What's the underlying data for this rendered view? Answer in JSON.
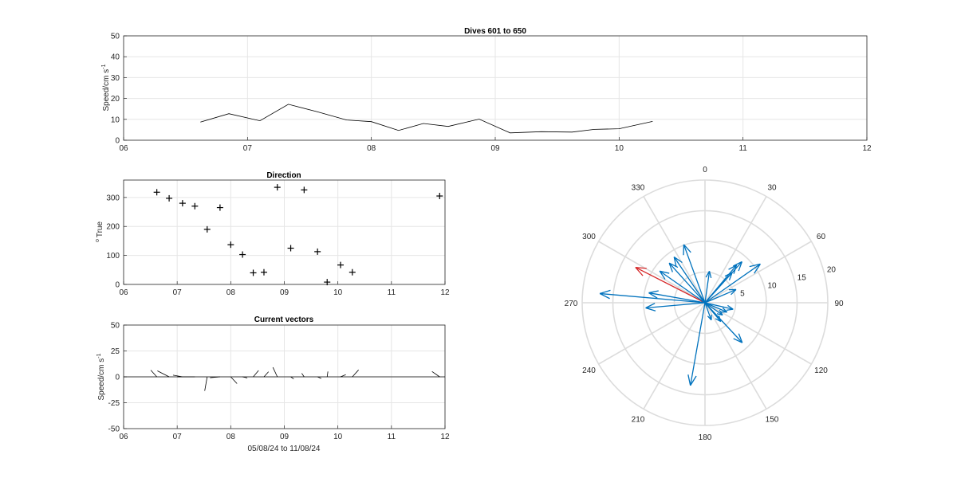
{
  "figure": {
    "date_range_label": "05/08/24 to 11/08/24"
  },
  "chart_data": [
    {
      "id": "speed",
      "type": "line",
      "title": "Dives 601 to 650",
      "ylabel": "Speed/cm s",
      "ylabel_sup": "-1",
      "xlim": [
        6,
        12
      ],
      "ylim": [
        0,
        50
      ],
      "xticks": [
        "06",
        "07",
        "08",
        "09",
        "10",
        "11",
        "12"
      ],
      "yticks": [
        0,
        10,
        20,
        30,
        40,
        50
      ],
      "grid": true,
      "x": [
        6.62,
        6.85,
        7.1,
        7.33,
        7.56,
        7.8,
        8.0,
        8.22,
        8.42,
        8.62,
        8.87,
        9.12,
        9.37,
        9.62,
        9.8,
        10.0,
        10.27
      ],
      "y": [
        8.7,
        12.7,
        9.3,
        17.2,
        13.7,
        9.7,
        8.9,
        4.7,
        8.0,
        6.6,
        10.1,
        3.5,
        4.1,
        3.9,
        5.2,
        5.5,
        9.0
      ]
    },
    {
      "id": "direction",
      "type": "scatter",
      "title": "Direction",
      "ylabel": "True",
      "ylabel_prefix": "o",
      "xlim": [
        6,
        12
      ],
      "ylim": [
        0,
        360
      ],
      "xticks": [
        "06",
        "07",
        "08",
        "09",
        "10",
        "11",
        "12"
      ],
      "yticks": [
        0,
        100,
        200,
        300
      ],
      "grid": true,
      "x": [
        6.62,
        6.85,
        7.1,
        7.33,
        7.56,
        7.8,
        8.0,
        8.22,
        8.42,
        8.62,
        8.87,
        9.12,
        9.37,
        9.62,
        9.8,
        10.05,
        10.27,
        11.9
      ],
      "y": [
        318,
        297,
        280,
        270,
        190,
        265,
        137,
        103,
        40,
        42,
        335,
        125,
        326,
        113,
        8,
        67,
        42,
        305
      ]
    },
    {
      "id": "vectors",
      "type": "line",
      "title": "Current vectors",
      "ylabel": "Speed/cm s",
      "ylabel_sup": "-1",
      "xlim": [
        6,
        12
      ],
      "ylim": [
        -50,
        50
      ],
      "xticks": [
        "06",
        "07",
        "08",
        "09",
        "10",
        "11",
        "12"
      ],
      "yticks": [
        -50,
        -25,
        0,
        25,
        50
      ],
      "grid": true,
      "vectors": [
        {
          "t": 6.62,
          "speed": 8.7,
          "dir": 318
        },
        {
          "t": 6.85,
          "speed": 12.7,
          "dir": 297
        },
        {
          "t": 7.1,
          "speed": 9.3,
          "dir": 280
        },
        {
          "t": 7.33,
          "speed": 17.2,
          "dir": 270
        },
        {
          "t": 7.56,
          "speed": 13.7,
          "dir": 190
        },
        {
          "t": 7.8,
          "speed": 9.7,
          "dir": 265
        },
        {
          "t": 8.0,
          "speed": 8.9,
          "dir": 137
        },
        {
          "t": 8.22,
          "speed": 4.7,
          "dir": 103
        },
        {
          "t": 8.42,
          "speed": 8.0,
          "dir": 40
        },
        {
          "t": 8.62,
          "speed": 6.6,
          "dir": 42
        },
        {
          "t": 8.87,
          "speed": 10.1,
          "dir": 335
        },
        {
          "t": 9.12,
          "speed": 3.5,
          "dir": 125
        },
        {
          "t": 9.37,
          "speed": 4.1,
          "dir": 326
        },
        {
          "t": 9.62,
          "speed": 3.9,
          "dir": 113
        },
        {
          "t": 9.8,
          "speed": 5.2,
          "dir": 8
        },
        {
          "t": 10.05,
          "speed": 5.5,
          "dir": 67
        },
        {
          "t": 10.27,
          "speed": 9.0,
          "dir": 42
        },
        {
          "t": 11.9,
          "speed": 9.0,
          "dir": 305
        }
      ]
    },
    {
      "id": "polar",
      "type": "scatter",
      "subtype": "compass",
      "theta_labels": [
        "0",
        "30",
        "60",
        "90",
        "120",
        "150",
        "180",
        "210",
        "240",
        "270",
        "300",
        "330"
      ],
      "r_labels": [
        "5",
        "10",
        "15",
        "20"
      ],
      "rlim": [
        0,
        20
      ],
      "series_color": "#0072BD",
      "highlight_color": "#D62728",
      "vectors": [
        {
          "speed": 8.7,
          "dir": 318
        },
        {
          "speed": 12.7,
          "dir": 297,
          "highlight": true
        },
        {
          "speed": 9.3,
          "dir": 280
        },
        {
          "speed": 17.2,
          "dir": 275
        },
        {
          "speed": 13.7,
          "dir": 190
        },
        {
          "speed": 9.7,
          "dir": 265
        },
        {
          "speed": 8.9,
          "dir": 137
        },
        {
          "speed": 4.7,
          "dir": 103
        },
        {
          "speed": 8.0,
          "dir": 40
        },
        {
          "speed": 6.6,
          "dir": 42
        },
        {
          "speed": 10.1,
          "dir": 340
        },
        {
          "speed": 3.5,
          "dir": 125
        },
        {
          "speed": 9.0,
          "dir": 326
        },
        {
          "speed": 3.9,
          "dir": 113
        },
        {
          "speed": 5.2,
          "dir": 8
        },
        {
          "speed": 5.5,
          "dir": 67
        },
        {
          "speed": 9.0,
          "dir": 42
        },
        {
          "speed": 9.0,
          "dir": 305
        },
        {
          "speed": 11.0,
          "dir": 55
        },
        {
          "speed": 4.0,
          "dir": 140
        },
        {
          "speed": 3.0,
          "dir": 160
        }
      ]
    }
  ]
}
